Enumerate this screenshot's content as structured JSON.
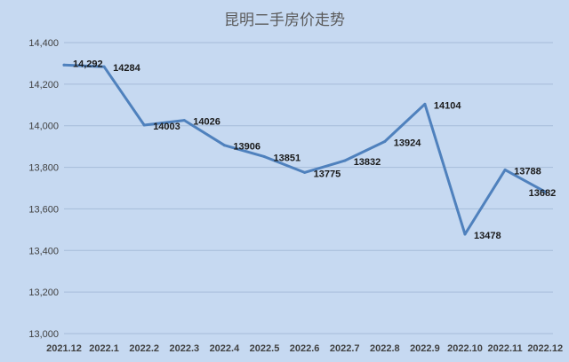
{
  "colors": {
    "background": "#c6d9f1",
    "line": "#4f81bd",
    "gridline": "#a6bcd9"
  },
  "chart_data": {
    "type": "line",
    "title": "昆明二手房价走势",
    "categories": [
      "2021.12",
      "2022.1",
      "2022.2",
      "2022.3",
      "2022.4",
      "2022.5",
      "2022.6",
      "2022.7",
      "2022.8",
      "2022.9",
      "2022.10",
      "2022.11",
      "2022.12"
    ],
    "series": [
      {
        "values": [
          14292,
          14284,
          14003,
          14026,
          13906,
          13851,
          13775,
          13832,
          13924,
          14104,
          13478,
          13788,
          13682
        ]
      }
    ],
    "data_labels": [
      "14,292",
      "14284",
      "14003",
      "14026",
      "13906",
      "13851",
      "13775",
      "13832",
      "13924",
      "14104",
      "13478",
      "13788",
      "13682"
    ],
    "y_ticks": [
      "13,000",
      "13,200",
      "13,400",
      "13,600",
      "13,800",
      "14,000",
      "14,200",
      "14,400"
    ],
    "ylim": [
      13000,
      14400
    ],
    "grid": "horizontal",
    "legend": "none"
  }
}
